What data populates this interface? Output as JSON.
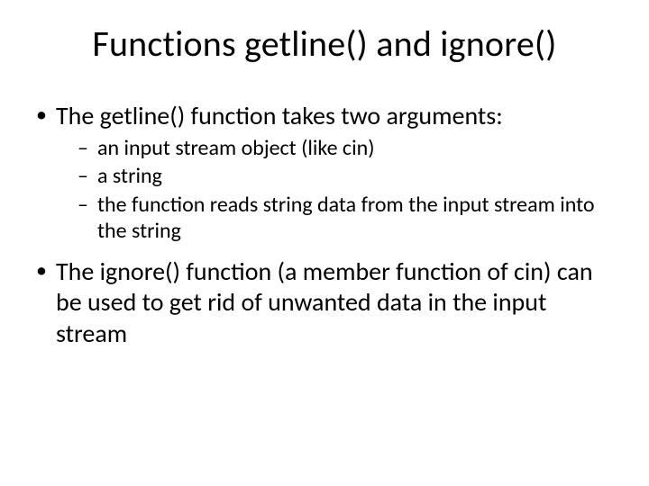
{
  "slide": {
    "title": "Functions getline() and ignore()",
    "bullets": [
      {
        "text": "The getline() function takes two arguments:",
        "sub": [
          "an input stream object (like cin)",
          "a string",
          "the function reads string data from the input stream into the string"
        ]
      },
      {
        "text": "The ignore() function (a member function of cin) can be used to get rid of unwanted data in the input stream",
        "sub": []
      }
    ]
  },
  "style": {
    "background_color": "#ffffff",
    "text_color": "#000000",
    "title_fontsize": 40,
    "level1_fontsize": 28,
    "level2_fontsize": 24,
    "font_family": "Calibri"
  }
}
